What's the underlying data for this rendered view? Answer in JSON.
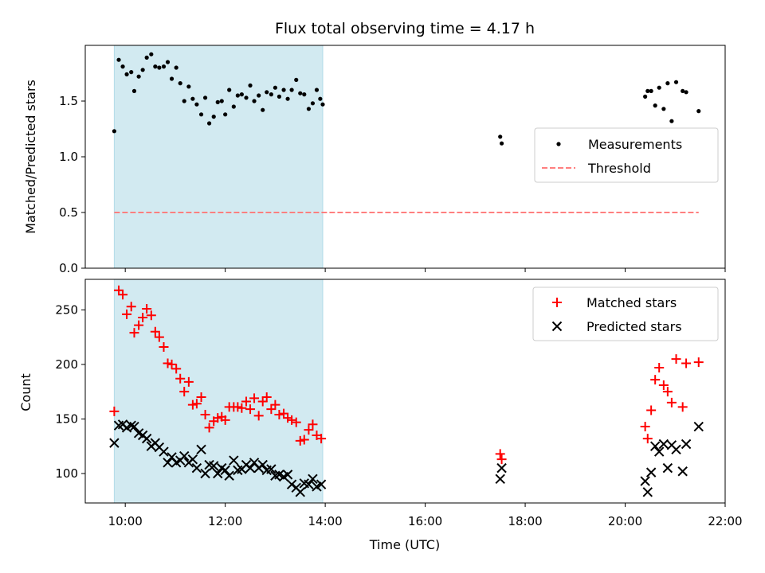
{
  "chart_data": {
    "type": "scatter",
    "title": "Flux total observing time = 4.17 h",
    "xlabel": "Time (UTC)",
    "x_unit": "hours UTC",
    "xlim": [
      9.2,
      22.0
    ],
    "xticks": [
      10,
      12,
      14,
      16,
      18,
      20,
      22
    ],
    "xtick_labels": [
      "10:00",
      "12:00",
      "14:00",
      "16:00",
      "18:00",
      "20:00",
      "22:00"
    ],
    "shaded_span": {
      "x": [
        9.78,
        13.95
      ],
      "color": "#add8e6"
    },
    "panels": [
      {
        "ylabel": "Matched/Predicted stars",
        "ylim": [
          0,
          2.0
        ],
        "yticks": [
          0.0,
          0.5,
          1.0,
          1.5
        ],
        "ytick_labels": [
          "0.0",
          "0.5",
          "1.0",
          "1.5"
        ],
        "legend_position": "right",
        "series": [
          {
            "name": "Measurements",
            "marker": "dot",
            "color": "#000000",
            "points": [
              [
                9.78,
                1.23
              ],
              [
                9.87,
                1.87
              ],
              [
                9.95,
                1.81
              ],
              [
                10.03,
                1.74
              ],
              [
                10.12,
                1.76
              ],
              [
                10.18,
                1.59
              ],
              [
                10.27,
                1.72
              ],
              [
                10.35,
                1.78
              ],
              [
                10.43,
                1.89
              ],
              [
                10.52,
                1.92
              ],
              [
                10.6,
                1.81
              ],
              [
                10.68,
                1.8
              ],
              [
                10.77,
                1.81
              ],
              [
                10.85,
                1.85
              ],
              [
                10.93,
                1.7
              ],
              [
                11.02,
                1.8
              ],
              [
                11.1,
                1.66
              ],
              [
                11.18,
                1.5
              ],
              [
                11.27,
                1.63
              ],
              [
                11.35,
                1.52
              ],
              [
                11.43,
                1.47
              ],
              [
                11.52,
                1.38
              ],
              [
                11.6,
                1.53
              ],
              [
                11.68,
                1.3
              ],
              [
                11.77,
                1.36
              ],
              [
                11.85,
                1.49
              ],
              [
                11.93,
                1.5
              ],
              [
                12.0,
                1.38
              ],
              [
                12.08,
                1.6
              ],
              [
                12.17,
                1.45
              ],
              [
                12.25,
                1.55
              ],
              [
                12.33,
                1.56
              ],
              [
                12.42,
                1.53
              ],
              [
                12.5,
                1.64
              ],
              [
                12.58,
                1.5
              ],
              [
                12.67,
                1.55
              ],
              [
                12.75,
                1.42
              ],
              [
                12.83,
                1.58
              ],
              [
                12.92,
                1.56
              ],
              [
                13.0,
                1.62
              ],
              [
                13.08,
                1.54
              ],
              [
                13.17,
                1.6
              ],
              [
                13.25,
                1.52
              ],
              [
                13.33,
                1.6
              ],
              [
                13.42,
                1.69
              ],
              [
                13.5,
                1.57
              ],
              [
                13.58,
                1.56
              ],
              [
                13.67,
                1.43
              ],
              [
                13.75,
                1.48
              ],
              [
                13.83,
                1.6
              ],
              [
                13.9,
                1.52
              ],
              [
                13.95,
                1.47
              ],
              [
                17.5,
                1.18
              ],
              [
                17.53,
                1.12
              ],
              [
                20.4,
                1.54
              ],
              [
                20.45,
                1.59
              ],
              [
                20.52,
                1.59
              ],
              [
                20.6,
                1.46
              ],
              [
                20.68,
                1.62
              ],
              [
                20.77,
                1.43
              ],
              [
                20.85,
                1.66
              ],
              [
                20.93,
                1.32
              ],
              [
                21.02,
                1.67
              ],
              [
                21.15,
                1.59
              ],
              [
                21.22,
                1.58
              ],
              [
                21.47,
                1.41
              ]
            ]
          },
          {
            "name": "Threshold",
            "marker": "dashed-line",
            "color": "#ff7f7f",
            "points": [
              [
                9.78,
                0.5
              ],
              [
                21.47,
                0.5
              ]
            ]
          }
        ]
      },
      {
        "ylabel": "Count",
        "ylim": [
          73,
          278
        ],
        "yticks": [
          100,
          150,
          200,
          250
        ],
        "ytick_labels": [
          "100",
          "150",
          "200",
          "250"
        ],
        "legend_position": "top-right",
        "series": [
          {
            "name": "Matched stars",
            "marker": "plus",
            "color": "#ff0000",
            "points": [
              [
                9.78,
                157
              ],
              [
                9.87,
                268
              ],
              [
                9.95,
                264
              ],
              [
                10.03,
                246
              ],
              [
                10.12,
                253
              ],
              [
                10.18,
                229
              ],
              [
                10.27,
                236
              ],
              [
                10.35,
                243
              ],
              [
                10.43,
                251
              ],
              [
                10.52,
                245
              ],
              [
                10.6,
                230
              ],
              [
                10.68,
                225
              ],
              [
                10.77,
                216
              ],
              [
                10.85,
                201
              ],
              [
                10.93,
                200
              ],
              [
                11.02,
                196
              ],
              [
                11.1,
                187
              ],
              [
                11.18,
                175
              ],
              [
                11.27,
                184
              ],
              [
                11.35,
                163
              ],
              [
                11.43,
                164
              ],
              [
                11.52,
                170
              ],
              [
                11.6,
                154
              ],
              [
                11.68,
                142
              ],
              [
                11.77,
                148
              ],
              [
                11.85,
                151
              ],
              [
                11.93,
                152
              ],
              [
                12.0,
                149
              ],
              [
                12.08,
                161
              ],
              [
                12.17,
                161
              ],
              [
                12.25,
                161
              ],
              [
                12.33,
                160
              ],
              [
                12.42,
                166
              ],
              [
                12.5,
                159
              ],
              [
                12.58,
                169
              ],
              [
                12.67,
                153
              ],
              [
                12.75,
                166
              ],
              [
                12.83,
                170
              ],
              [
                12.92,
                159
              ],
              [
                13.0,
                163
              ],
              [
                13.08,
                154
              ],
              [
                13.17,
                155
              ],
              [
                13.25,
                151
              ],
              [
                13.33,
                149
              ],
              [
                13.42,
                147
              ],
              [
                13.5,
                130
              ],
              [
                13.58,
                131
              ],
              [
                13.67,
                140
              ],
              [
                13.75,
                145
              ],
              [
                13.83,
                135
              ],
              [
                13.92,
                132
              ],
              [
                17.5,
                118
              ],
              [
                17.53,
                113
              ],
              [
                20.4,
                143
              ],
              [
                20.45,
                132
              ],
              [
                20.52,
                158
              ],
              [
                20.6,
                186
              ],
              [
                20.68,
                197
              ],
              [
                20.77,
                181
              ],
              [
                20.85,
                175
              ],
              [
                20.93,
                165
              ],
              [
                21.02,
                205
              ],
              [
                21.15,
                161
              ],
              [
                21.22,
                201
              ],
              [
                21.47,
                202
              ]
            ]
          },
          {
            "name": "Predicted stars",
            "marker": "x",
            "color": "#000000",
            "points": [
              [
                9.78,
                128
              ],
              [
                9.87,
                144
              ],
              [
                9.95,
                145
              ],
              [
                10.03,
                142
              ],
              [
                10.12,
                144
              ],
              [
                10.18,
                143
              ],
              [
                10.27,
                137
              ],
              [
                10.35,
                135
              ],
              [
                10.43,
                132
              ],
              [
                10.52,
                125
              ],
              [
                10.6,
                128
              ],
              [
                10.68,
                124
              ],
              [
                10.77,
                120
              ],
              [
                10.85,
                110
              ],
              [
                10.93,
                115
              ],
              [
                11.02,
                110
              ],
              [
                11.1,
                112
              ],
              [
                11.18,
                116
              ],
              [
                11.27,
                110
              ],
              [
                11.35,
                113
              ],
              [
                11.43,
                105
              ],
              [
                11.52,
                122
              ],
              [
                11.6,
                100
              ],
              [
                11.68,
                108
              ],
              [
                11.77,
                107
              ],
              [
                11.85,
                100
              ],
              [
                11.93,
                105
              ],
              [
                12.0,
                103
              ],
              [
                12.08,
                98
              ],
              [
                12.17,
                112
              ],
              [
                12.25,
                103
              ],
              [
                12.33,
                104
              ],
              [
                12.42,
                108
              ],
              [
                12.5,
                105
              ],
              [
                12.58,
                110
              ],
              [
                12.67,
                105
              ],
              [
                12.75,
                108
              ],
              [
                12.83,
                103
              ],
              [
                12.92,
                104
              ],
              [
                13.0,
                98
              ],
              [
                13.08,
                99
              ],
              [
                13.17,
                97
              ],
              [
                13.25,
                99
              ],
              [
                13.33,
                90
              ],
              [
                13.42,
                87
              ],
              [
                13.5,
                83
              ],
              [
                13.58,
                91
              ],
              [
                13.67,
                90
              ],
              [
                13.75,
                95
              ],
              [
                13.83,
                88
              ],
              [
                13.92,
                90
              ],
              [
                17.5,
                95
              ],
              [
                17.53,
                105
              ],
              [
                20.4,
                93
              ],
              [
                20.45,
                83
              ],
              [
                20.52,
                101
              ],
              [
                20.6,
                125
              ],
              [
                20.68,
                120
              ],
              [
                20.77,
                127
              ],
              [
                20.85,
                105
              ],
              [
                20.93,
                126
              ],
              [
                21.02,
                122
              ],
              [
                21.15,
                102
              ],
              [
                21.22,
                127
              ],
              [
                21.47,
                143
              ]
            ]
          }
        ]
      }
    ]
  }
}
